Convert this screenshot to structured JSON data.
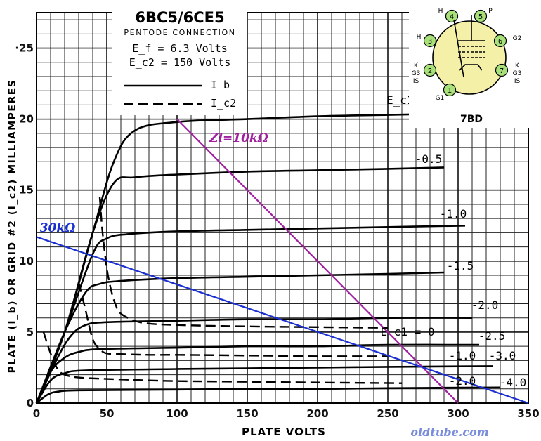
{
  "chart_data": {
    "type": "line",
    "title": "6BC5/6CE5",
    "subtitle": "PENTODE CONNECTION",
    "conditions": [
      "E_f = 6.3 Volts",
      "E_c2 = 150 Volts"
    ],
    "legend": [
      {
        "symbol": "I_b",
        "style": "solid"
      },
      {
        "symbol": "I_c2",
        "style": "dashed"
      }
    ],
    "xlabel": "PLATE VOLTS",
    "ylabel": "PLATE (I_b) OR GRID #2 (I_c2) MILLIAMPERES",
    "xlim": [
      0,
      350
    ],
    "ylim": [
      0,
      27.5
    ],
    "x_ticks": [
      0,
      50,
      100,
      150,
      200,
      250,
      300,
      350
    ],
    "y_ticks": [
      0,
      5,
      10,
      15,
      20,
      25
    ],
    "y_tick_labels": [
      "0",
      "5",
      "10",
      "15",
      "20",
      "·25"
    ],
    "grid": true,
    "plate_current_series": [
      {
        "label": "E_c1 = 0",
        "x": [
          0,
          20,
          40,
          55,
          70,
          100,
          150,
          200,
          250,
          300
        ],
        "y": [
          0,
          5,
          12,
          17,
          19.2,
          19.8,
          20.0,
          20.2,
          20.3,
          20.4
        ]
      },
      {
        "label": "-0.5",
        "x": [
          0,
          20,
          40,
          55,
          70,
          100,
          150,
          200,
          250,
          290
        ],
        "y": [
          0,
          5,
          12,
          15.5,
          15.9,
          16.1,
          16.3,
          16.4,
          16.5,
          16.6
        ]
      },
      {
        "label": "-1.0",
        "x": [
          0,
          20,
          40,
          50,
          65,
          100,
          150,
          200,
          250,
          305
        ],
        "y": [
          0,
          5,
          10.5,
          11.6,
          11.9,
          12.1,
          12.2,
          12.3,
          12.4,
          12.5
        ]
      },
      {
        "label": "-1.5",
        "x": [
          0,
          20,
          35,
          45,
          60,
          100,
          150,
          200,
          250,
          290
        ],
        "y": [
          0,
          5,
          7.8,
          8.4,
          8.6,
          8.8,
          8.9,
          9.0,
          9.1,
          9.2
        ]
      },
      {
        "label": "-2.0",
        "x": [
          0,
          15,
          25,
          35,
          50,
          100,
          150,
          200,
          250,
          310
        ],
        "y": [
          0,
          3.2,
          4.8,
          5.5,
          5.7,
          5.8,
          5.9,
          5.9,
          6.0,
          6.0
        ]
      },
      {
        "label": "-2.5",
        "x": [
          0,
          10,
          20,
          30,
          45,
          100,
          150,
          200,
          250,
          315
        ],
        "y": [
          0,
          2.2,
          3.2,
          3.6,
          3.8,
          3.9,
          4.0,
          4.0,
          4.1,
          4.1
        ]
      },
      {
        "label": "-3.0",
        "x": [
          0,
          10,
          20,
          35,
          100,
          150,
          200,
          250,
          325
        ],
        "y": [
          0,
          1.6,
          2.1,
          2.3,
          2.4,
          2.45,
          2.5,
          2.55,
          2.6
        ]
      },
      {
        "label": "-4.0",
        "x": [
          0,
          8,
          15,
          30,
          100,
          150,
          200,
          250,
          330
        ],
        "y": [
          0,
          0.6,
          0.8,
          0.9,
          0.95,
          1.0,
          1.0,
          1.05,
          1.1
        ]
      }
    ],
    "screen_current_series": [
      {
        "label": "E_c1 = 0",
        "x": [
          45,
          47,
          50,
          53,
          56,
          60,
          70,
          80,
          100,
          150,
          200,
          250
        ],
        "y": [
          14.5,
          12,
          9.5,
          8.0,
          7.0,
          6.3,
          5.8,
          5.6,
          5.5,
          5.4,
          5.35,
          5.3
        ]
      },
      {
        "label": "-1.0",
        "x": [
          30,
          35,
          40,
          45,
          50,
          60,
          80,
          100,
          150,
          200,
          250
        ],
        "y": [
          8.5,
          6.5,
          4.5,
          3.8,
          3.5,
          3.45,
          3.4,
          3.4,
          3.35,
          3.3,
          3.3
        ]
      },
      {
        "label": "-2.0",
        "x": [
          5,
          10,
          15,
          20,
          30,
          50,
          80,
          100,
          150,
          200,
          260
        ],
        "y": [
          5.0,
          3.5,
          2.4,
          2.0,
          1.8,
          1.7,
          1.6,
          1.55,
          1.5,
          1.45,
          1.4
        ]
      }
    ],
    "load_lines": [
      {
        "label": "Zl=10kΩ",
        "color": "#a020a0",
        "x": [
          100,
          300
        ],
        "y": [
          20,
          0
        ]
      },
      {
        "label": "30kΩ",
        "color": "#1a2fd0",
        "x": [
          0,
          350
        ],
        "y": [
          11.7,
          0
        ]
      }
    ],
    "base_diagram": {
      "name": "7BD",
      "pins": [
        {
          "num": "1",
          "label": "G1"
        },
        {
          "num": "2",
          "label": "K\nG3\nIS"
        },
        {
          "num": "3",
          "label": "H"
        },
        {
          "num": "4",
          "label": "H"
        },
        {
          "num": "5",
          "label": "P"
        },
        {
          "num": "6",
          "label": "G2"
        },
        {
          "num": "7",
          "label": "K\nG3\nIS"
        }
      ]
    },
    "watermark": "oldtube.com"
  }
}
